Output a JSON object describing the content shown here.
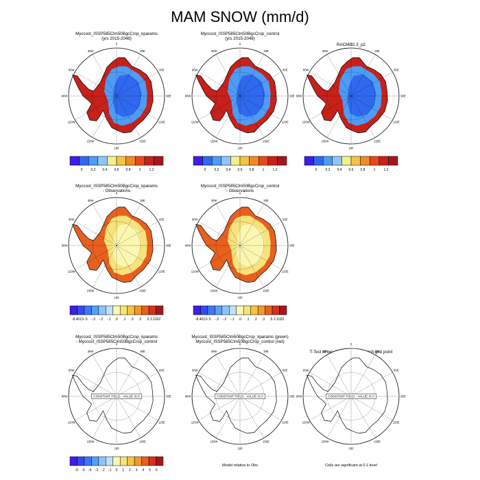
{
  "page": {
    "title": "MAM SNOW (mm/d)"
  },
  "colors": {
    "abs_scale": [
      "#3c1ee6",
      "#2f69f0",
      "#4d9cf5",
      "#8fc6f7",
      "#f2ef8f",
      "#f5c441",
      "#f08c28",
      "#e8481c",
      "#c8201a",
      "#a6161e"
    ],
    "diff_scale": [
      "#3c1ee6",
      "#3549f0",
      "#3d78f2",
      "#56a0f5",
      "#8ec3f7",
      "#bfe0f9",
      "#fbf6b0",
      "#f7e37c",
      "#f5c441",
      "#f09a2c",
      "#e8601e",
      "#d8301a",
      "#a6161e"
    ],
    "ocean": "#ffffff",
    "coast": "#000000"
  },
  "rows": [
    {
      "panels": [
        {
          "title_lines": [
            "Myccost_ISSP585Clm50BgcCrop_kparams",
            "(yrs 2015-2048)"
          ],
          "type": "abs"
        },
        {
          "title_lines": [
            "Myccost_ISSP585Clm50BgcCrop_control",
            "(yrs 2015-2048)"
          ],
          "type": "abs"
        },
        {
          "title_lines": [
            "RACMO2.3_p2"
          ],
          "type": "abs"
        }
      ],
      "colorbars": [
        {
          "labels": [
            "0",
            "0.2",
            "0.4",
            "0.6",
            "0.8",
            "1",
            "1.2"
          ]
        },
        {
          "labels": [
            "0",
            "0.2",
            "0.4",
            "0.6",
            "0.8",
            "1",
            "1.2"
          ]
        },
        {
          "labels": [
            "0",
            "0.2",
            "0.4",
            "0.6",
            "0.8",
            "1",
            "1.2"
          ]
        }
      ]
    },
    {
      "panels": [
        {
          "title_lines": [
            "Myccost_ISSP585Clm50BgcCrop_kparams",
            "- Observations"
          ],
          "type": "diff"
        },
        {
          "title_lines": [
            "Myccost_ISSP585Clm50BgcCrop_control",
            "- Observations"
          ],
          "type": "diff"
        }
      ],
      "colorbars": [
        {
          "labels": [
            "-8.4013",
            "-.5",
            "-.3",
            "-.2",
            "-.1",
            ".0",
            ".1",
            ".2",
            ".3",
            ".5",
            "2.1022"
          ]
        },
        {
          "labels": [
            "-8.4013",
            "-.5",
            "-.3",
            "-.2",
            "-.1",
            ".0",
            ".1",
            ".2",
            ".3",
            ".5",
            "2.1022"
          ]
        }
      ]
    },
    {
      "panels": [
        {
          "title_lines": [
            "Myccost_ISSP585Clm50BgcCrop_kparams",
            "- Myccost_ISSP585Clm50BgcCrop_control"
          ],
          "type": "empty",
          "center_label": "CONSTANT FIELD - VALUE IS 0"
        },
        {
          "title_lines": [
            "Myccost_ISSP585Clm50BgcCrop_kparams (green)",
            "Myccost_ISSP585Clm50BgcCrop_control (red)"
          ],
          "type": "empty",
          "center_label": "CONSTANT FIELD - VALUE IS 0"
        },
        {
          "title_lines": [
            "T-Test of two Case means at each grid point"
          ],
          "type": "empty",
          "center_label": "CONSTANT FIELD - VALUE IS 0"
        }
      ],
      "colorbars": [
        {
          "labels": [
            "-6",
            "-5",
            "-4",
            "-3",
            "-2",
            "-1",
            "0",
            "1",
            "2",
            "3",
            "4",
            "5",
            "6"
          ]
        }
      ],
      "notes": [
        "Model relative to Obs",
        "Cells are significant at 0.1 level"
      ]
    }
  ],
  "longitude_labels": [
    "0",
    "30E",
    "60E",
    "90E",
    "120E",
    "150E",
    "180",
    "150W",
    "120W",
    "90W",
    "60W",
    "30W"
  ]
}
